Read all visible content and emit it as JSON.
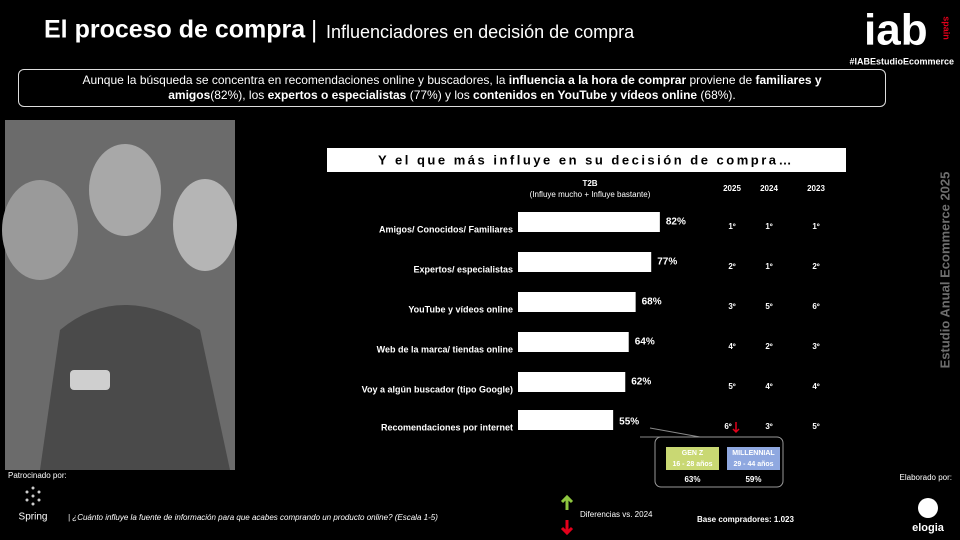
{
  "header": {
    "title": "El proceso de compra",
    "separator": "|",
    "subtitle": "Influenciadores en decisión de compra"
  },
  "brand": {
    "logo": "iab",
    "logo_sub": "spain",
    "hashtag": "#IABEstudioEcommerce"
  },
  "summary": [
    {
      "text": "Aunque la búsqueda se concentra en recomendaciones online y buscadores, la ",
      "bold": false
    },
    {
      "text": "influencia a la hora de comprar",
      "bold": true
    },
    {
      "text": " proviene de ",
      "bold": false
    },
    {
      "text": "familiares y amigos",
      "bold": true
    },
    {
      "text": "(82%), los ",
      "bold": false
    },
    {
      "text": "expertos o especialistas",
      "bold": true
    },
    {
      "text": " (77%) y los ",
      "bold": false
    },
    {
      "text": "contenidos en YouTube y vídeos online",
      "bold": true
    },
    {
      "text": " (68%).",
      "bold": false
    }
  ],
  "side_label": "Estudio Anual Ecommerce 2025",
  "chart_data": {
    "type": "bar",
    "orientation": "horizontal",
    "title": "Y el que más influye en su decisión de compra…",
    "axis_label": "T2B",
    "axis_sublabel": "(Influye mucho + Influye bastante)",
    "categories": [
      "Amigos/ Conocidos/ Familiares",
      "Expertos/ especialistas",
      "YouTube y vídeos online",
      "Web de la marca/ tiendas online",
      "Voy a algún buscador (tipo Google)",
      "Recomendaciones por internet"
    ],
    "values": [
      82,
      77,
      68,
      64,
      62,
      55
    ],
    "value_labels": [
      "82%",
      "77%",
      "68%",
      "64%",
      "62%",
      "55%"
    ],
    "color": "#ffffff"
  },
  "rankings": {
    "columns": [
      "2025",
      "2024",
      "2023"
    ],
    "rows": [
      [
        "1º",
        "1º",
        "1º"
      ],
      [
        "2º",
        "1º",
        "2º"
      ],
      [
        "3º",
        "5º",
        "6º"
      ],
      [
        "4º",
        "2º",
        "3º"
      ],
      [
        "5º",
        "4º",
        "4º"
      ],
      [
        "6º",
        "3º",
        "5º"
      ]
    ]
  },
  "callout": {
    "segments": [
      {
        "name": "GEN Z",
        "age": "16 - 28 años",
        "value": "63%",
        "color": "#c9d873"
      },
      {
        "name": "MILLENNIAL",
        "age": "29 - 44 años",
        "value": "59%",
        "color": "#8fa8e0"
      }
    ]
  },
  "footer": {
    "sponsor_label": "Patrocinado por:",
    "sponsor": "Spring",
    "question": "| ¿Cuánto influye la fuente de información para que acabes comprando un producto online? (Escala 1-5)",
    "legend_note": "Diferencias vs. 2024",
    "base": "Base compradores: 1.023",
    "made_by": "Elaborado por:",
    "maker": "elogia"
  }
}
